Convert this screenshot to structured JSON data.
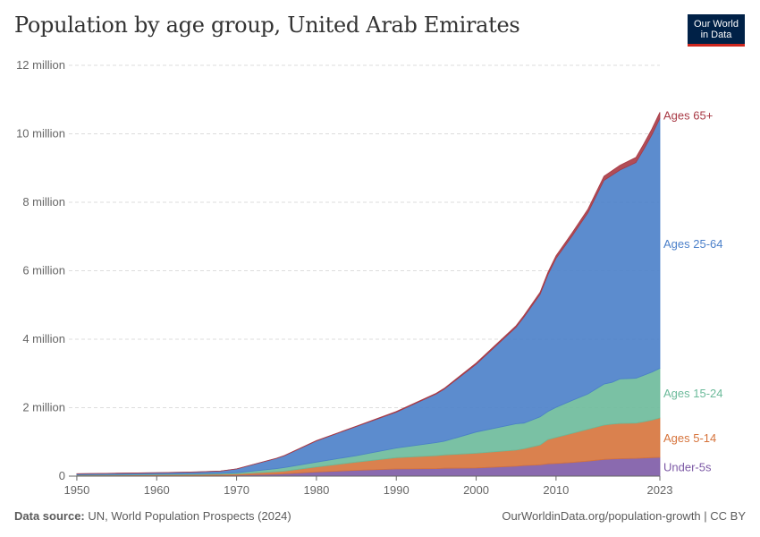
{
  "header": {
    "title": "Population by age group, United Arab Emirates",
    "logo_line1": "Our World",
    "logo_line2": "in Data"
  },
  "footer": {
    "source_label": "Data source:",
    "source_text": "UN, World Population Prospects (2024)",
    "citation": "OurWorldinData.org/population-growth | CC BY"
  },
  "colors": {
    "under5": "#7d5aa6",
    "age5_14": "#d6733b",
    "age15_24": "#6bba9a",
    "age25_64": "#4a7fc9",
    "age65": "#a83a45",
    "grid": "#dddddd",
    "axis": "#666666"
  },
  "chart_data": {
    "type": "area",
    "stacked": true,
    "x": [
      1950,
      1955,
      1960,
      1965,
      1968,
      1970,
      1975,
      1976,
      1980,
      1985,
      1990,
      1995,
      1996,
      2000,
      2005,
      2006,
      2008,
      2009,
      2010,
      2012,
      2014,
      2016,
      2017,
      2018,
      2020,
      2021,
      2022,
      2023
    ],
    "series": [
      {
        "name": "Under-5s",
        "color": "#7d5aa6",
        "values": [
          0.013,
          0.016,
          0.018,
          0.022,
          0.026,
          0.03,
          0.06,
          0.07,
          0.12,
          0.17,
          0.21,
          0.22,
          0.23,
          0.24,
          0.29,
          0.31,
          0.33,
          0.36,
          0.37,
          0.4,
          0.44,
          0.49,
          0.5,
          0.51,
          0.52,
          0.53,
          0.54,
          0.55
        ]
      },
      {
        "name": "Ages 5-14",
        "color": "#d6733b",
        "values": [
          0.015,
          0.017,
          0.02,
          0.025,
          0.03,
          0.035,
          0.07,
          0.08,
          0.15,
          0.24,
          0.33,
          0.38,
          0.39,
          0.43,
          0.47,
          0.49,
          0.58,
          0.71,
          0.76,
          0.85,
          0.93,
          1.0,
          1.02,
          1.03,
          1.03,
          1.06,
          1.1,
          1.15
        ]
      },
      {
        "name": "Ages 15-24",
        "color": "#6bba9a",
        "values": [
          0.012,
          0.015,
          0.018,
          0.022,
          0.028,
          0.035,
          0.09,
          0.1,
          0.14,
          0.19,
          0.28,
          0.38,
          0.4,
          0.62,
          0.77,
          0.75,
          0.82,
          0.82,
          0.88,
          0.96,
          1.03,
          1.2,
          1.22,
          1.3,
          1.31,
          1.36,
          1.4,
          1.45
        ]
      },
      {
        "name": "Ages 25-64",
        "color": "#4a7fc9",
        "values": [
          0.028,
          0.035,
          0.043,
          0.053,
          0.064,
          0.11,
          0.3,
          0.35,
          0.62,
          0.85,
          1.05,
          1.42,
          1.52,
          1.98,
          2.82,
          3.1,
          3.58,
          4.0,
          4.35,
          4.8,
          5.3,
          5.95,
          6.05,
          6.1,
          6.3,
          6.6,
          6.93,
          7.3
        ]
      },
      {
        "name": "Ages 65+",
        "color": "#a83a45",
        "values": [
          0.002,
          0.002,
          0.002,
          0.002,
          0.002,
          0.003,
          0.004,
          0.005,
          0.008,
          0.012,
          0.017,
          0.022,
          0.025,
          0.035,
          0.045,
          0.05,
          0.06,
          0.07,
          0.08,
          0.09,
          0.1,
          0.12,
          0.13,
          0.14,
          0.15,
          0.16,
          0.17,
          0.18
        ]
      }
    ],
    "title": "Population by age group, United Arab Emirates",
    "ylim": [
      0,
      12
    ],
    "y_ticks": [
      0,
      2,
      4,
      6,
      8,
      10,
      12
    ],
    "y_tick_labels": [
      "0",
      "2 million",
      "4 million",
      "6 million",
      "8 million",
      "10 million",
      "12 million"
    ],
    "x_ticks": [
      1950,
      1960,
      1970,
      1980,
      1990,
      2000,
      2010,
      2023
    ],
    "x_tick_labels": [
      "1950",
      "1960",
      "1970",
      "1980",
      "1990",
      "2000",
      "2010",
      "2023"
    ],
    "xlim": [
      1949,
      2023
    ],
    "grid": true,
    "legend": "inline-right"
  }
}
